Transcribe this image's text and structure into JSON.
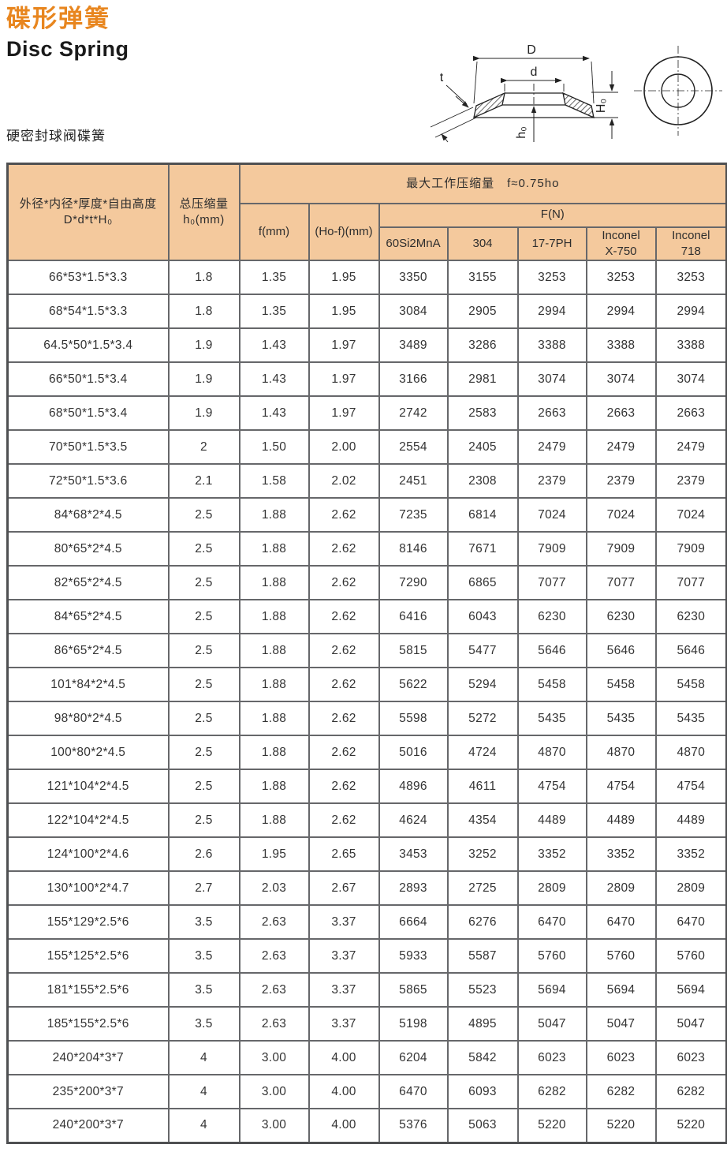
{
  "page": {
    "title_zh": "碟形弹簧",
    "title_en": "Disc Spring",
    "subtitle": "硬密封球阀碟簧"
  },
  "diagram": {
    "labels": {
      "D": "D",
      "d": "d",
      "t": "t",
      "H0": "H₀",
      "h0": "h₀"
    }
  },
  "colors": {
    "accent_orange": "#e8861f",
    "table_header_bg": "#f4c99d",
    "table_border": "#66676a"
  },
  "table": {
    "header": {
      "dims": "外径*内径*厚度*自由高度\nD*d*t*H₀",
      "total_compression": "总压缩量\nh₀(mm)",
      "max_working_compression": "最大工作压缩量　f≈0.75ho",
      "f_mm": "f(mm)",
      "ho_minus_f": "(Ho-f)(mm)",
      "force": "F(N)",
      "materials": [
        "60Si2MnA",
        "304",
        "17-7PH",
        "Inconel\nX-750",
        "Inconel\n718"
      ]
    },
    "rows": [
      [
        "66*53*1.5*3.3",
        "1.8",
        "1.35",
        "1.95",
        "3350",
        "3155",
        "3253",
        "3253",
        "3253"
      ],
      [
        "68*54*1.5*3.3",
        "1.8",
        "1.35",
        "1.95",
        "3084",
        "2905",
        "2994",
        "2994",
        "2994"
      ],
      [
        "64.5*50*1.5*3.4",
        "1.9",
        "1.43",
        "1.97",
        "3489",
        "3286",
        "3388",
        "3388",
        "3388"
      ],
      [
        "66*50*1.5*3.4",
        "1.9",
        "1.43",
        "1.97",
        "3166",
        "2981",
        "3074",
        "3074",
        "3074"
      ],
      [
        "68*50*1.5*3.4",
        "1.9",
        "1.43",
        "1.97",
        "2742",
        "2583",
        "2663",
        "2663",
        "2663"
      ],
      [
        "70*50*1.5*3.5",
        "2",
        "1.50",
        "2.00",
        "2554",
        "2405",
        "2479",
        "2479",
        "2479"
      ],
      [
        "72*50*1.5*3.6",
        "2.1",
        "1.58",
        "2.02",
        "2451",
        "2308",
        "2379",
        "2379",
        "2379"
      ],
      [
        "84*68*2*4.5",
        "2.5",
        "1.88",
        "2.62",
        "7235",
        "6814",
        "7024",
        "7024",
        "7024"
      ],
      [
        "80*65*2*4.5",
        "2.5",
        "1.88",
        "2.62",
        "8146",
        "7671",
        "7909",
        "7909",
        "7909"
      ],
      [
        "82*65*2*4.5",
        "2.5",
        "1.88",
        "2.62",
        "7290",
        "6865",
        "7077",
        "7077",
        "7077"
      ],
      [
        "84*65*2*4.5",
        "2.5",
        "1.88",
        "2.62",
        "6416",
        "6043",
        "6230",
        "6230",
        "6230"
      ],
      [
        "86*65*2*4.5",
        "2.5",
        "1.88",
        "2.62",
        "5815",
        "5477",
        "5646",
        "5646",
        "5646"
      ],
      [
        "101*84*2*4.5",
        "2.5",
        "1.88",
        "2.62",
        "5622",
        "5294",
        "5458",
        "5458",
        "5458"
      ],
      [
        "98*80*2*4.5",
        "2.5",
        "1.88",
        "2.62",
        "5598",
        "5272",
        "5435",
        "5435",
        "5435"
      ],
      [
        "100*80*2*4.5",
        "2.5",
        "1.88",
        "2.62",
        "5016",
        "4724",
        "4870",
        "4870",
        "4870"
      ],
      [
        "121*104*2*4.5",
        "2.5",
        "1.88",
        "2.62",
        "4896",
        "4611",
        "4754",
        "4754",
        "4754"
      ],
      [
        "122*104*2*4.5",
        "2.5",
        "1.88",
        "2.62",
        "4624",
        "4354",
        "4489",
        "4489",
        "4489"
      ],
      [
        "124*100*2*4.6",
        "2.6",
        "1.95",
        "2.65",
        "3453",
        "3252",
        "3352",
        "3352",
        "3352"
      ],
      [
        "130*100*2*4.7",
        "2.7",
        "2.03",
        "2.67",
        "2893",
        "2725",
        "2809",
        "2809",
        "2809"
      ],
      [
        "155*129*2.5*6",
        "3.5",
        "2.63",
        "3.37",
        "6664",
        "6276",
        "6470",
        "6470",
        "6470"
      ],
      [
        "155*125*2.5*6",
        "3.5",
        "2.63",
        "3.37",
        "5933",
        "5587",
        "5760",
        "5760",
        "5760"
      ],
      [
        "181*155*2.5*6",
        "3.5",
        "2.63",
        "3.37",
        "5865",
        "5523",
        "5694",
        "5694",
        "5694"
      ],
      [
        "185*155*2.5*6",
        "3.5",
        "2.63",
        "3.37",
        "5198",
        "4895",
        "5047",
        "5047",
        "5047"
      ],
      [
        "240*204*3*7",
        "4",
        "3.00",
        "4.00",
        "6204",
        "5842",
        "6023",
        "6023",
        "6023"
      ],
      [
        "235*200*3*7",
        "4",
        "3.00",
        "4.00",
        "6470",
        "6093",
        "6282",
        "6282",
        "6282"
      ],
      [
        "240*200*3*7",
        "4",
        "3.00",
        "4.00",
        "5376",
        "5063",
        "5220",
        "5220",
        "5220"
      ]
    ]
  }
}
